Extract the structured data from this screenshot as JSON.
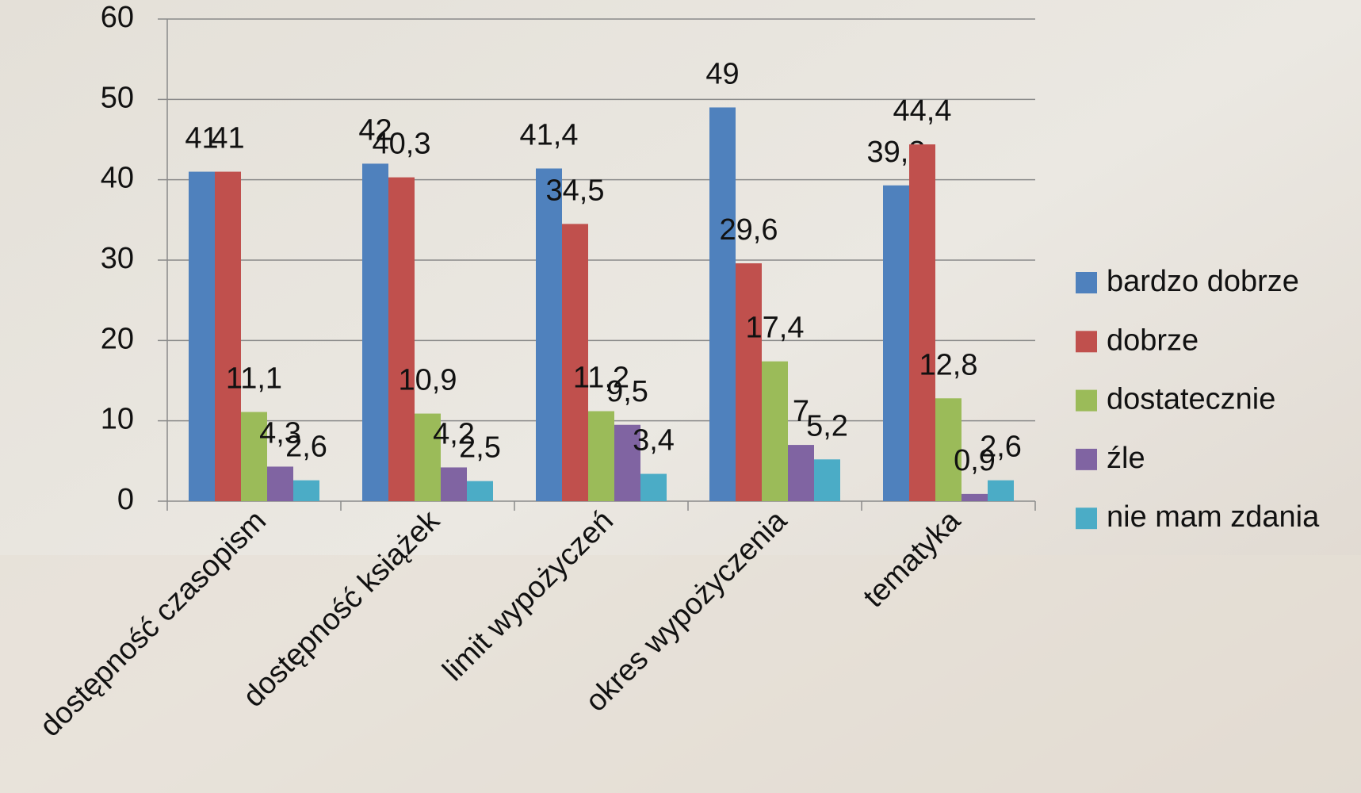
{
  "chart_data": {
    "type": "bar",
    "categories": [
      "dostępność czasopism",
      "dostępność książek",
      "limit wypożyczeń",
      "okres wypożyczenia",
      "tematyka"
    ],
    "series": [
      {
        "name": "bardzo dobrze",
        "color": "#4f81bd",
        "values": [
          41,
          42,
          41.4,
          49,
          39.3
        ],
        "value_labels": [
          "41",
          "42",
          "41,4",
          "49",
          "39,3"
        ]
      },
      {
        "name": "dobrze",
        "color": "#c0504d",
        "values": [
          41,
          40.3,
          34.5,
          29.6,
          44.4
        ],
        "value_labels": [
          "41",
          "40,3",
          "34,5",
          "29,6",
          "44,4"
        ]
      },
      {
        "name": "dostatecznie",
        "color": "#9bbb59",
        "values": [
          11.1,
          10.9,
          11.2,
          17.4,
          12.8
        ],
        "value_labels": [
          "11,1",
          "10,9",
          "11,2",
          "17,4",
          "12,8"
        ]
      },
      {
        "name": "źle",
        "color": "#8064a2",
        "values": [
          4.3,
          4.2,
          9.5,
          7,
          0.9
        ],
        "value_labels": [
          "4,3",
          "4,2",
          "9,5",
          "7",
          "0,9"
        ]
      },
      {
        "name": "nie mam zdania",
        "color": "#4bacc6",
        "values": [
          2.6,
          2.5,
          3.4,
          5.2,
          2.6
        ],
        "value_labels": [
          "2,6",
          "2,5",
          "3,4",
          "5,2",
          "2,6"
        ]
      }
    ],
    "ylim": [
      0,
      60
    ],
    "yticks": [
      0,
      10,
      20,
      30,
      40,
      50,
      60
    ],
    "grid": true,
    "legend": "right"
  }
}
